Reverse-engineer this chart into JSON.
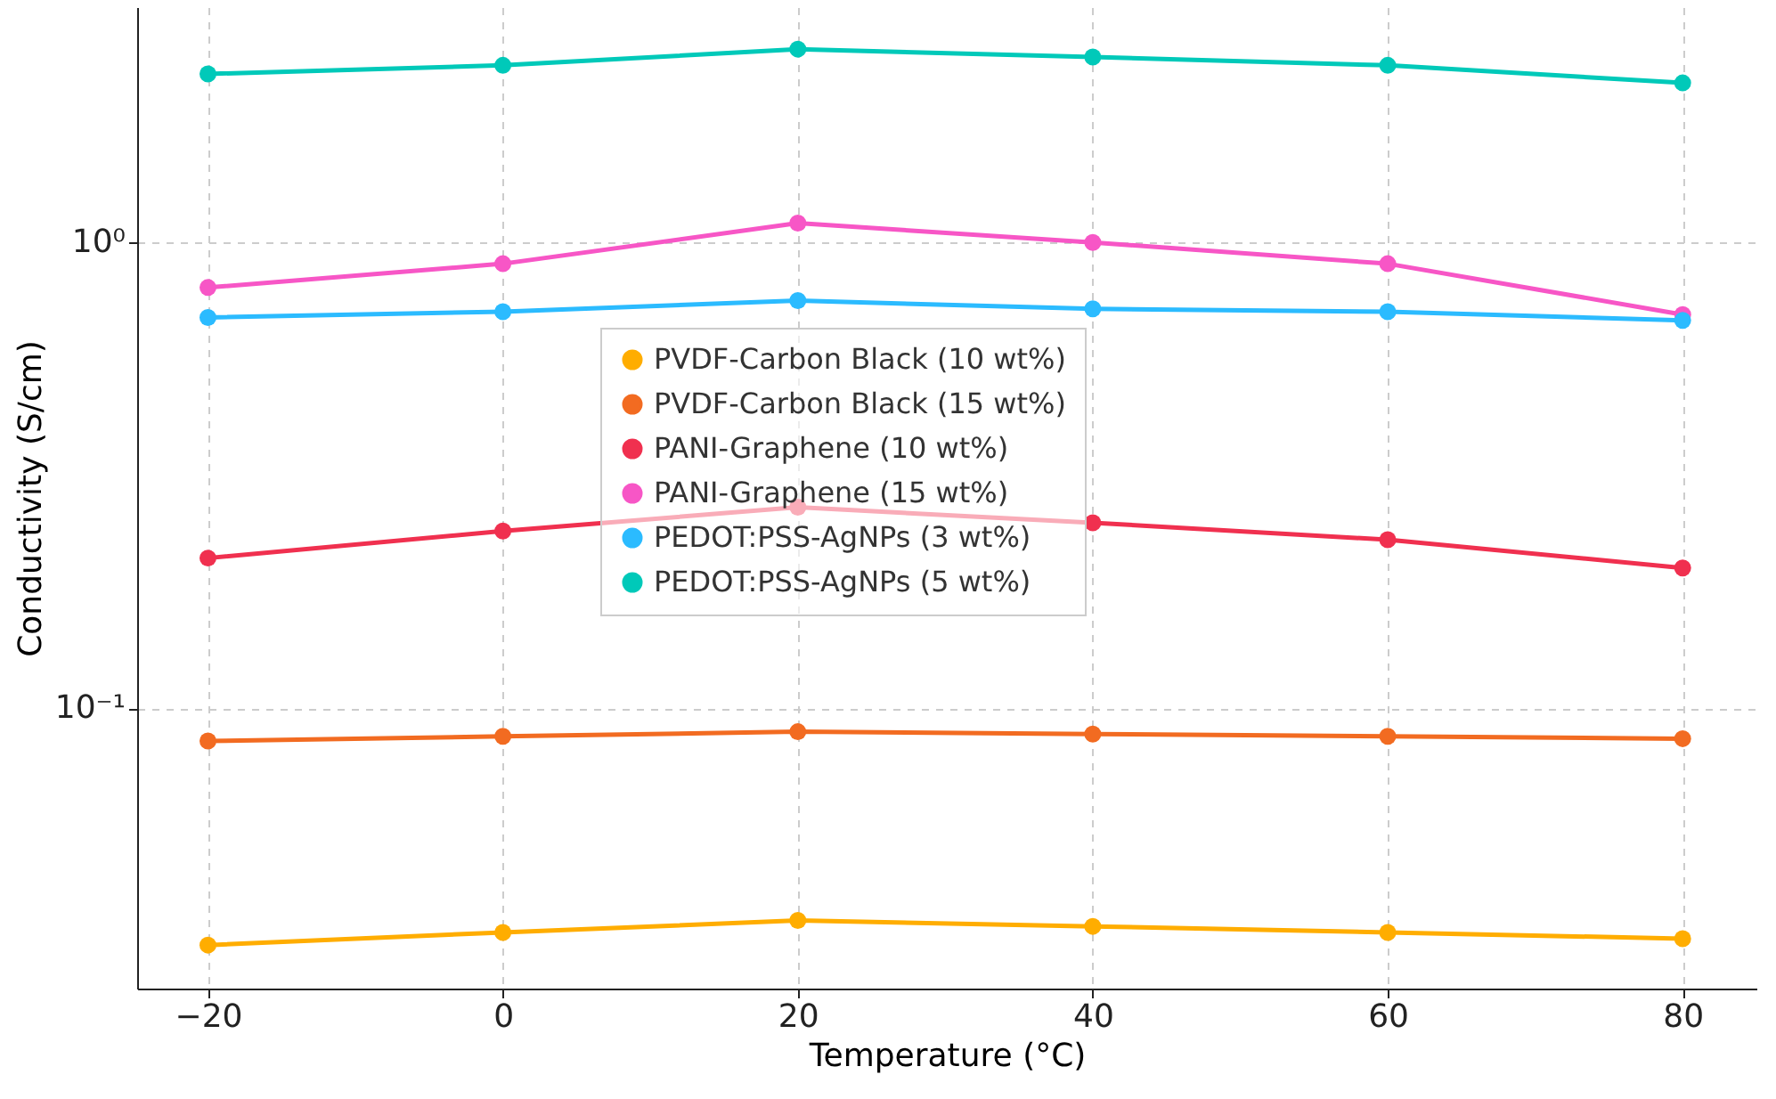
{
  "chart_data": {
    "type": "line",
    "xlabel": "Temperature (°C)",
    "ylabel": "Conductivity (S/cm)",
    "x": [
      -20,
      0,
      20,
      40,
      60,
      80
    ],
    "series": [
      {
        "name": "PVDF-Carbon Black (10 wt%)",
        "color": "#ffad00",
        "values": [
          0.031,
          0.033,
          0.035,
          0.034,
          0.033,
          0.032
        ]
      },
      {
        "name": "PVDF-Carbon Black (15 wt%)",
        "color": "#f26b21",
        "values": [
          0.085,
          0.087,
          0.089,
          0.088,
          0.087,
          0.086
        ]
      },
      {
        "name": "PANI-Graphene (10 wt%)",
        "color": "#f0304f",
        "values": [
          0.21,
          0.24,
          0.27,
          0.25,
          0.23,
          0.2
        ]
      },
      {
        "name": "PANI-Graphene (15 wt%)",
        "color": "#f756c6",
        "values": [
          0.8,
          0.9,
          1.1,
          1.0,
          0.9,
          0.7
        ]
      },
      {
        "name": "PEDOT:PSS-AgNPs (3 wt%)",
        "color": "#2bbbff",
        "values": [
          0.69,
          0.71,
          0.75,
          0.72,
          0.71,
          0.68
        ]
      },
      {
        "name": "PEDOT:PSS-AgNPs (5 wt%)",
        "color": "#00c9b9",
        "values": [
          2.3,
          2.4,
          2.6,
          2.5,
          2.4,
          2.2
        ]
      }
    ],
    "xlim": [
      -24.8,
      85
    ],
    "xticks": [
      -20,
      0,
      20,
      40,
      60,
      80
    ],
    "ylim": [
      0.025,
      3.2
    ],
    "yticks": [
      {
        "value": 0.1,
        "label": "10⁻¹"
      },
      {
        "value": 1,
        "label": "10⁰"
      }
    ],
    "log": "y",
    "grid": true,
    "legend": "center",
    "marker": "circle",
    "line_style": "solid"
  }
}
